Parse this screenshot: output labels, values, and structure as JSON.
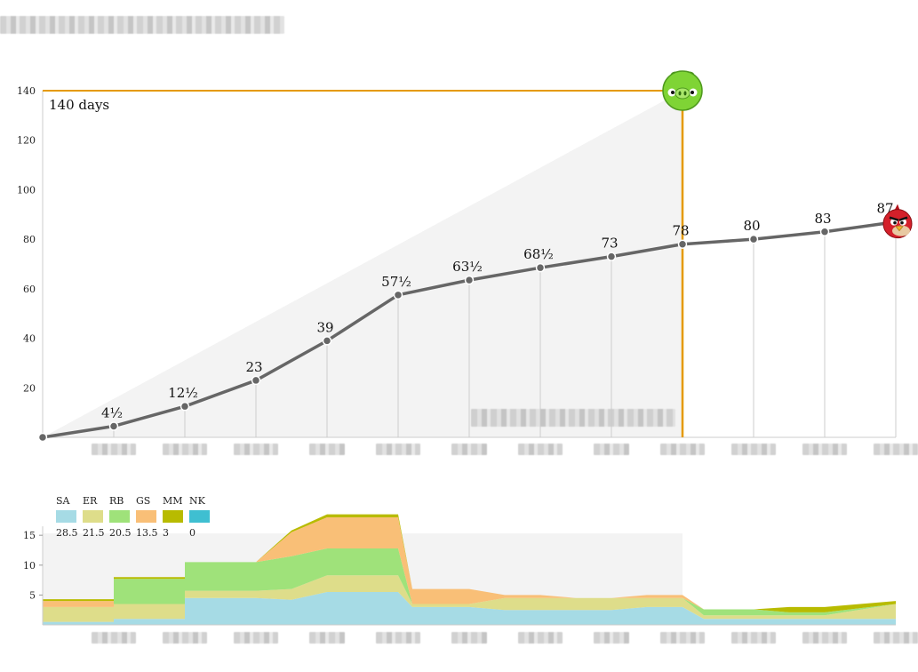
{
  "colors": {
    "accent": "#e59a00",
    "line": "#666666",
    "shade": "#f3f3f3",
    "grid": "#cccccc",
    "SA": "#a6dbe5",
    "ER": "#dedd8a",
    "RB": "#9fe27a",
    "GS": "#f9bf77",
    "MM": "#b8bb00",
    "NK": "#3fbfd1"
  },
  "icons": {
    "marker_top": "green-pig-icon",
    "marker_end": "red-bird-icon"
  },
  "chart_data": [
    {
      "type": "line",
      "title": "",
      "annotation": "140 days",
      "ylim": [
        0,
        140
      ],
      "yticks": [
        "20",
        "40",
        "60",
        "80",
        "100",
        "120",
        "140"
      ],
      "x": [
        0,
        1,
        2,
        3,
        4,
        5,
        6,
        7,
        8,
        9,
        10,
        11,
        12
      ],
      "values": [
        0,
        4.5,
        12.5,
        23,
        39,
        57.5,
        63.5,
        68.5,
        73,
        78,
        80,
        83,
        87
      ],
      "point_labels": [
        "",
        "4½",
        "12½",
        "23",
        "39",
        "57½",
        "63½",
        "68½",
        "73",
        "78",
        "80",
        "83",
        "87"
      ],
      "reference_line": {
        "y": 140,
        "x": 9
      },
      "grid": "vertical guides at data points"
    },
    {
      "type": "area",
      "stacked": true,
      "ylim": [
        0,
        18
      ],
      "yticks": [
        "5",
        "10",
        "15"
      ],
      "legend_placement": "top-left",
      "legend": [
        {
          "key": "SA",
          "value": "28.5"
        },
        {
          "key": "ER",
          "value": "21.5"
        },
        {
          "key": "RB",
          "value": "20.5"
        },
        {
          "key": "GS",
          "value": "13.5"
        },
        {
          "key": "MM",
          "value": "3"
        },
        {
          "key": "NK",
          "value": "0"
        }
      ],
      "series": [
        {
          "name": "SA",
          "values": [
            0.5,
            0.5,
            1,
            1,
            4.5,
            4.5,
            4.2,
            5.5,
            5.5,
            3,
            3,
            2.5,
            2.5,
            2.5,
            2.5,
            3,
            3,
            1,
            1,
            1,
            1,
            1
          ]
        },
        {
          "name": "ER",
          "values": [
            2.5,
            2.5,
            2.5,
            2.5,
            1.2,
            1.2,
            1.8,
            2.8,
            2.8,
            0.5,
            0.5,
            2,
            2,
            2,
            2,
            1.5,
            1.5,
            0.6,
            0.6,
            0.6,
            0.6,
            2.5
          ]
        },
        {
          "name": "RB",
          "values": [
            0,
            0,
            4.2,
            4.2,
            4.8,
            4.8,
            5.5,
            4.5,
            4.5,
            0,
            0,
            0,
            0,
            0,
            0,
            0,
            0,
            1,
            1,
            0.5,
            0.5,
            0
          ]
        },
        {
          "name": "GS",
          "values": [
            1,
            1,
            0,
            0,
            0,
            0,
            4,
            5.2,
            5.2,
            2.5,
            2.5,
            0.5,
            0.5,
            0,
            0,
            0.5,
            0.5,
            0,
            0,
            0,
            0,
            0
          ]
        },
        {
          "name": "MM",
          "values": [
            0.3,
            0.3,
            0.3,
            0.3,
            0,
            0,
            0.3,
            0.5,
            0.5,
            0,
            0,
            0,
            0,
            0,
            0,
            0,
            0,
            0,
            0,
            0.9,
            0.9,
            0.5
          ]
        },
        {
          "name": "NK",
          "values": [
            0,
            0,
            0,
            0,
            0,
            0,
            0,
            0,
            0,
            0,
            0,
            0,
            0,
            0,
            0,
            0,
            0,
            0,
            0,
            0,
            0,
            0
          ]
        }
      ],
      "x": [
        0,
        1,
        1,
        2,
        2,
        3,
        3.5,
        4,
        5,
        5.2,
        6,
        6.5,
        7,
        7.5,
        8,
        8.5,
        9,
        9.3,
        10,
        10.5,
        11,
        12
      ]
    }
  ]
}
